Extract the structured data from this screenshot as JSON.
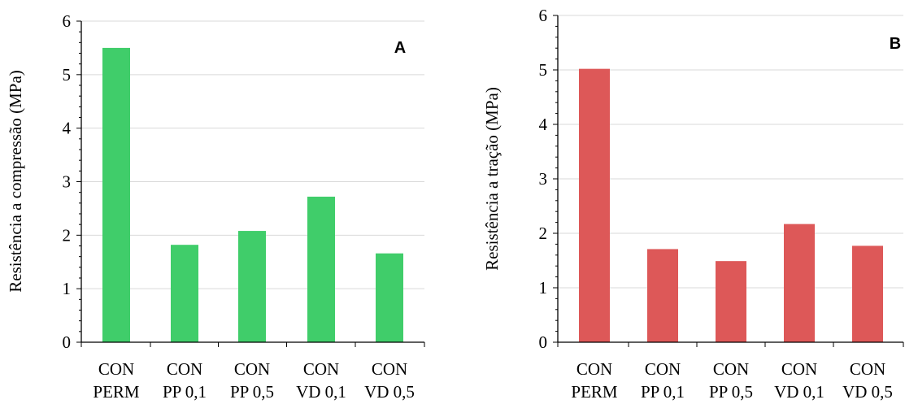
{
  "chart_data": [
    {
      "type": "bar",
      "panel_label": "A",
      "ylabel": "Resistência a compressão (MPa)",
      "xlabel": "",
      "ylim": [
        0,
        6
      ],
      "yticks": [
        "0",
        "1",
        "2",
        "3",
        "4",
        "5",
        "6"
      ],
      "grid": true,
      "categories": [
        [
          "CON",
          "PERM"
        ],
        [
          "CON",
          "PP 0,1"
        ],
        [
          "CON",
          "PP 0,5"
        ],
        [
          "CON",
          "VD 0,1"
        ],
        [
          "CON",
          "VD 0,5"
        ]
      ],
      "values": [
        5.5,
        1.82,
        2.08,
        2.72,
        1.66
      ],
      "color": "#40cd6a"
    },
    {
      "type": "bar",
      "panel_label": "B",
      "ylabel": "Resistência a tração (MPa)",
      "xlabel": "",
      "ylim": [
        0,
        6
      ],
      "yticks": [
        "0",
        "1",
        "2",
        "3",
        "4",
        "5",
        "6"
      ],
      "grid": true,
      "categories": [
        [
          "CON",
          "PERM"
        ],
        [
          "CON",
          "PP 0,1"
        ],
        [
          "CON",
          "PP 0,5"
        ],
        [
          "CON",
          "VD 0,1"
        ],
        [
          "CON",
          "VD 0,5"
        ]
      ],
      "values": [
        5.02,
        1.71,
        1.49,
        2.17,
        1.77
      ],
      "color": "#dd5858"
    }
  ]
}
